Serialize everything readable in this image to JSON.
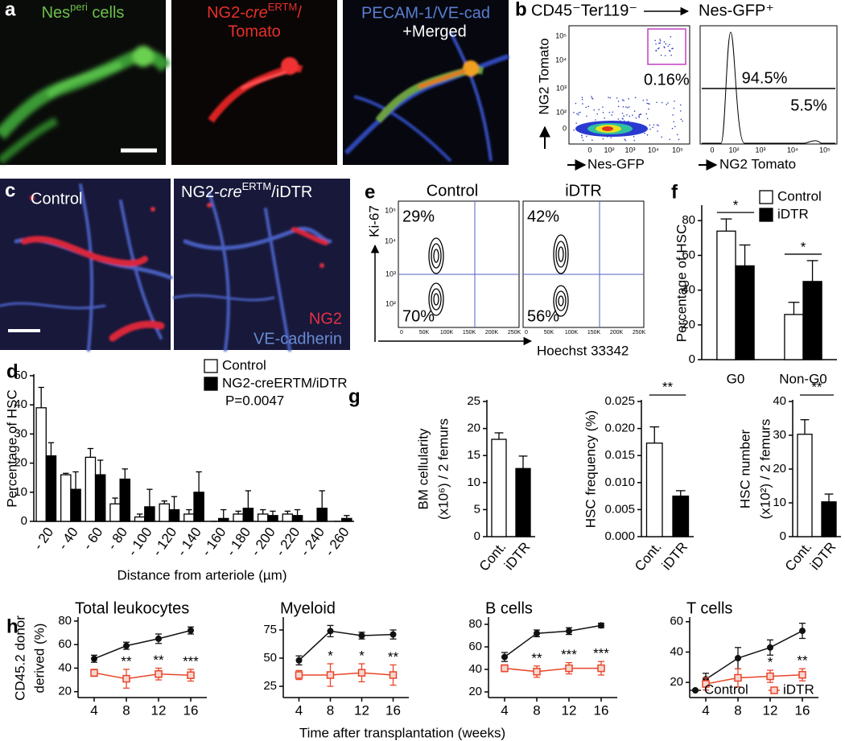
{
  "panels": {
    "a": {
      "letter": "a",
      "channel_1": [
        "Nes",
        "peri",
        " cells"
      ],
      "channel_2": [
        "NG2-",
        "cre",
        "ERTM",
        "/"
      ],
      "channel_2_line_2": "Tomato",
      "channel_3": "PECAM-1/VE-cad",
      "channel_3_line_2": "+Merged"
    },
    "b": {
      "letter": "b",
      "gate_from": "CD45⁻Ter119⁻",
      "gate_to": "Nes-GFP⁺",
      "y_label": "NG2 Tomato",
      "x_label": "Nes-GFP",
      "gate_percent": "0.16%",
      "histogram_upper": "94.5%",
      "histogram_lower": "5.5%",
      "histogram_x_label": "NG2 Tomato",
      "scatter_ticks": [
        "0",
        "10²",
        "10³",
        "10⁴",
        "10⁵"
      ]
    },
    "c": {
      "letter": "c",
      "left": "Control",
      "right": [
        "NG2-",
        "cre",
        "ERTM",
        "/iDTR"
      ],
      "stain_1": "NG2",
      "stain_2": "VE-cadherin"
    },
    "e": {
      "letter": "e",
      "left": "Control",
      "right": "iDTR",
      "y_label": "Ki-67",
      "x_label": "Hoechst 33342",
      "control_upper": "29%",
      "control_lower": "70%",
      "idtr_upper": "42%",
      "idtr_lower": "56%",
      "x_ticks": [
        "0",
        "50K",
        "100K",
        "150K",
        "200K",
        "250K"
      ],
      "y_ticks": [
        "10²",
        "10³",
        "10⁴",
        "10⁵"
      ]
    }
  },
  "chart_data": [
    {
      "type": "bar",
      "panel": "d",
      "ylabel": [
        "Percentage of HSC"
      ],
      "xlabel": "Distance from arteriole (µm)",
      "categories": [
        "- 20",
        "- 40",
        "- 60",
        "- 80",
        "- 100",
        "- 120",
        "- 140",
        "- 160",
        "- 180",
        "- 200",
        "- 220",
        "- 240",
        "- 260"
      ],
      "ylim": [
        0,
        50
      ],
      "yticks": [
        0,
        10,
        20,
        30,
        40,
        50
      ],
      "legend": "upper right",
      "note": "P=0.0047",
      "series": [
        {
          "name": "Control",
          "color": "#ffffff",
          "values": [
            39,
            16,
            22,
            6,
            1.5,
            6,
            2.5,
            0,
            2.5,
            2.5,
            2.5,
            0,
            0
          ],
          "errors": [
            7,
            0.5,
            3,
            2,
            1,
            1,
            1.5,
            0,
            1,
            1.5,
            1,
            0,
            0
          ]
        },
        {
          "name": "NG2-creERTM/iDTR",
          "color": "#000000",
          "values": [
            22.5,
            11,
            16,
            14.5,
            5,
            4,
            10,
            1,
            4.5,
            2,
            2,
            4.5,
            1
          ],
          "errors": [
            4.5,
            6,
            5,
            3.5,
            6,
            4.5,
            7,
            3,
            6,
            1.5,
            2,
            6,
            1
          ]
        }
      ]
    },
    {
      "type": "bar",
      "panel": "f",
      "ylabel": [
        "Percentage of HSC"
      ],
      "categories": [
        "G0",
        "Non-G0"
      ],
      "ylim": [
        0,
        88
      ],
      "yticks": [
        0,
        20,
        40,
        60,
        80
      ],
      "legend": "upper right",
      "annotations": [
        "*",
        "*"
      ],
      "series": [
        {
          "name": "Control",
          "color": "#ffffff",
          "values": [
            74,
            26
          ],
          "errors": [
            7,
            7
          ]
        },
        {
          "name": "iDTR",
          "color": "#000000",
          "values": [
            54,
            45
          ],
          "errors": [
            12,
            12
          ]
        }
      ]
    },
    {
      "type": "bar",
      "panel": "g",
      "ylabel": [
        "BM cellularity",
        "(x10⁶) / 2 femurs"
      ],
      "categories": [
        "Cont.",
        "iDTR"
      ],
      "values": [
        18,
        12.6
      ],
      "errors": [
        1.2,
        2.3
      ],
      "colors": [
        "#ffffff",
        "#000000"
      ],
      "ylim": [
        0,
        25
      ],
      "yticks": [
        0,
        5,
        10,
        15,
        20,
        25
      ]
    },
    {
      "type": "bar",
      "ylabel": [
        "HSC frequency (%)"
      ],
      "categories": [
        "Cont.",
        "iDTR"
      ],
      "values": [
        0.0173,
        0.0075
      ],
      "errors": [
        0.003,
        0.001
      ],
      "colors": [
        "#ffffff",
        "#000000"
      ],
      "ylim": [
        0,
        0.025
      ],
      "yticks": [
        {
          "value": 0,
          "label": "0.000"
        },
        0.005,
        {
          "value": 0.01,
          "label": "0.010"
        },
        0.015,
        {
          "value": 0.02,
          "label": "0.020"
        },
        0.025
      ],
      "annotation": "**"
    },
    {
      "type": "bar",
      "ylabel": [
        "HSC number",
        "(x10²) / 2 femurs"
      ],
      "categories": [
        "Cont.",
        "iDTR"
      ],
      "values": [
        30.3,
        10.3
      ],
      "errors": [
        4.3,
        2.3
      ],
      "colors": [
        "#ffffff",
        "#000000"
      ],
      "ylim": [
        0,
        40
      ],
      "yticks": [
        0,
        10,
        20,
        30,
        40
      ],
      "annotation": "**"
    },
    {
      "type": "line",
      "panel": "h",
      "title": "Total leukocytes",
      "ylabel": [
        "CD45.2 donor",
        "derived (%)"
      ],
      "xlabel": "Time after transplantation (weeks)",
      "x": [
        4,
        8,
        12,
        16
      ],
      "xlim": [
        2,
        18
      ],
      "xticks": [
        4,
        8,
        12,
        16
      ],
      "ylim": [
        15,
        82
      ],
      "yticks": [
        20,
        40,
        60,
        80
      ],
      "annotations": [
        "*",
        "**",
        "**",
        "***"
      ],
      "series": [
        {
          "color": "#111111",
          "marker": "circle",
          "values": [
            48,
            59,
            65,
            72
          ],
          "errors": [
            3,
            3,
            4,
            3
          ]
        },
        {
          "color": "#e8462a",
          "marker": "square",
          "values": [
            36,
            31,
            35,
            34
          ],
          "errors": [
            3,
            8,
            5,
            5
          ]
        }
      ]
    },
    {
      "type": "line",
      "title": "Myeloid",
      "x": [
        4,
        8,
        12,
        16
      ],
      "xlim": [
        2,
        18
      ],
      "xticks": [
        4,
        8,
        12,
        16
      ],
      "ylim": [
        15,
        85
      ],
      "yticks": [
        25,
        50,
        75
      ],
      "annotations": [
        null,
        "*",
        "*",
        "**"
      ],
      "series": [
        {
          "color": "#111111",
          "marker": "circle",
          "values": [
            48,
            74,
            70,
            71
          ],
          "errors": [
            4,
            5,
            3,
            4
          ]
        },
        {
          "color": "#e8462a",
          "marker": "square",
          "values": [
            35,
            35,
            37,
            35
          ],
          "errors": [
            4,
            10,
            8,
            9
          ]
        }
      ]
    },
    {
      "type": "line",
      "title": "B cells",
      "x": [
        4,
        8,
        12,
        16
      ],
      "xlim": [
        2,
        18
      ],
      "xticks": [
        4,
        8,
        12,
        16
      ],
      "ylim": [
        15,
        85
      ],
      "yticks": [
        20,
        40,
        60,
        80
      ],
      "annotations": [
        null,
        "**",
        "***",
        "***"
      ],
      "series": [
        {
          "color": "#111111",
          "marker": "circle",
          "values": [
            51,
            72,
            74,
            79
          ],
          "errors": [
            4,
            3,
            3,
            2
          ]
        },
        {
          "color": "#e8462a",
          "marker": "square",
          "values": [
            41,
            38,
            41,
            41
          ],
          "errors": [
            3,
            5,
            5,
            6
          ]
        }
      ]
    },
    {
      "type": "line",
      "title": "T cells",
      "x": [
        4,
        8,
        12,
        16
      ],
      "xlim": [
        2,
        18
      ],
      "xticks": [
        4,
        8,
        12,
        16
      ],
      "ylim": [
        10,
        62
      ],
      "yticks": [
        20,
        40,
        60
      ],
      "annotations": [
        null,
        null,
        "*",
        "**"
      ],
      "legend": "lower right",
      "series": [
        {
          "name": "Control",
          "color": "#111111",
          "marker": "circle",
          "values": [
            22,
            36,
            43,
            54
          ],
          "errors": [
            4,
            7,
            5,
            5
          ]
        },
        {
          "name": "iDTR",
          "color": "#e8462a",
          "marker": "square",
          "values": [
            19,
            23,
            24,
            25
          ],
          "errors": [
            4,
            6,
            4,
            4
          ]
        }
      ]
    }
  ]
}
